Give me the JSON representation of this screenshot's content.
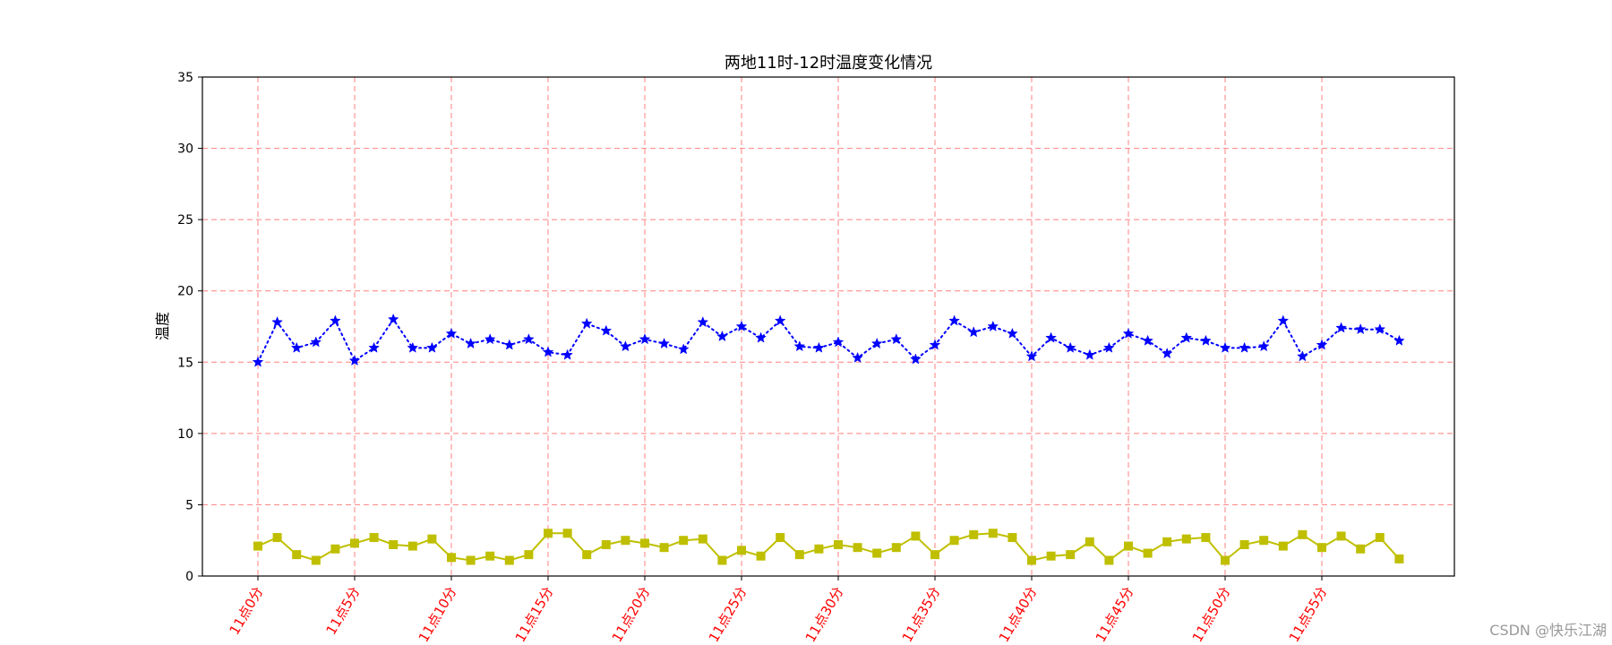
{
  "chart_data": {
    "type": "line",
    "title": "两地11时-12时温度变化情况",
    "xlabel": "",
    "ylabel": "温度",
    "ylim": [
      0,
      35
    ],
    "yticks": [
      0,
      5,
      10,
      15,
      20,
      25,
      30,
      35
    ],
    "xtick_labels": [
      "11点0分",
      "11点5分",
      "11点10分",
      "11点15分",
      "11点20分",
      "11点25分",
      "11点30分",
      "11点35分",
      "11点40分",
      "11点45分",
      "11点50分",
      "11点55分"
    ],
    "xtick_positions": [
      0,
      5,
      10,
      15,
      20,
      25,
      30,
      35,
      40,
      45,
      50,
      55
    ],
    "x": [
      0,
      1,
      2,
      3,
      4,
      5,
      6,
      7,
      8,
      9,
      10,
      11,
      12,
      13,
      14,
      15,
      16,
      17,
      18,
      19,
      20,
      21,
      22,
      23,
      24,
      25,
      26,
      27,
      28,
      29,
      30,
      31,
      32,
      33,
      34,
      35,
      36,
      37,
      38,
      39,
      40,
      41,
      42,
      43,
      44,
      45,
      46,
      47,
      48,
      49,
      50,
      51,
      52,
      53,
      54,
      55,
      56,
      57,
      58,
      59
    ],
    "grid": true,
    "series": [
      {
        "color": "#0000ff",
        "linestyle": "dotted",
        "marker": "star",
        "values": [
          15.0,
          17.8,
          16.0,
          16.4,
          17.9,
          15.1,
          16.0,
          18.0,
          16.0,
          16.0,
          17.0,
          16.3,
          16.6,
          16.2,
          16.6,
          15.7,
          15.5,
          17.7,
          17.2,
          16.1,
          16.6,
          16.3,
          15.9,
          17.8,
          16.8,
          17.5,
          16.7,
          17.9,
          16.1,
          16.0,
          16.4,
          15.3,
          16.3,
          16.6,
          15.2,
          16.2,
          17.9,
          17.1,
          17.5,
          17.0,
          15.4,
          16.7,
          16.0,
          15.5,
          16.0,
          17.0,
          16.5,
          15.6,
          16.7,
          16.5,
          16.0,
          16.0,
          16.1,
          17.9,
          15.4,
          16.2,
          17.4,
          17.3,
          17.3,
          16.5
        ]
      },
      {
        "color": "#bfbf00",
        "linestyle": "solid",
        "marker": "square",
        "values": [
          2.1,
          2.7,
          1.5,
          1.1,
          1.9,
          2.3,
          2.7,
          2.2,
          2.1,
          2.6,
          1.3,
          1.1,
          1.4,
          1.1,
          1.5,
          3.0,
          3.0,
          1.5,
          2.2,
          2.5,
          2.3,
          2.0,
          2.5,
          2.6,
          1.1,
          1.8,
          1.4,
          2.7,
          1.5,
          1.9,
          2.2,
          2.0,
          1.6,
          2.0,
          2.8,
          1.5,
          2.5,
          2.9,
          3.0,
          2.7,
          1.1,
          1.4,
          1.5,
          2.4,
          1.1,
          2.1,
          1.6,
          2.4,
          2.6,
          2.7,
          1.1,
          2.2,
          2.5,
          2.1,
          2.9,
          2.0,
          2.8,
          1.9,
          2.7,
          1.2
        ]
      }
    ]
  },
  "watermark": "CSDN @快乐江湖"
}
